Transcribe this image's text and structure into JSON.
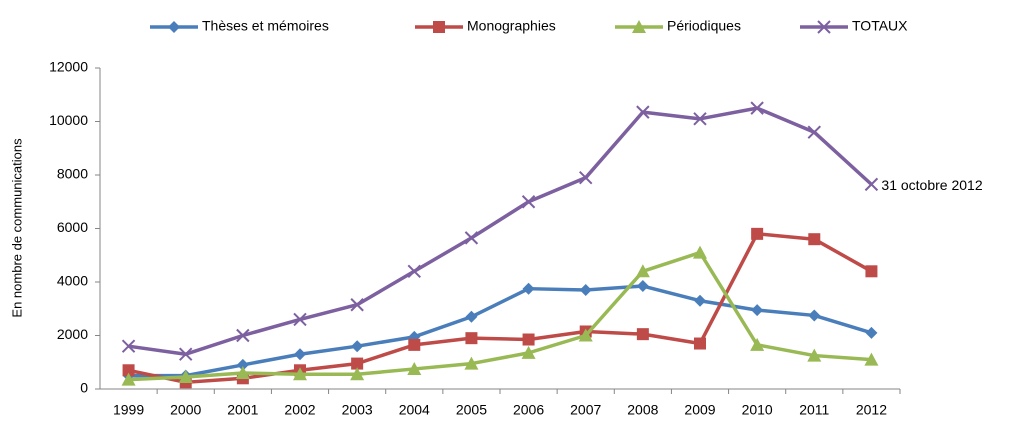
{
  "chart_data": {
    "type": "line",
    "ylabel": "En nombre de communications",
    "annotation": "31 octobre 2012",
    "categories": [
      "1999",
      "2000",
      "2001",
      "2002",
      "2003",
      "2004",
      "2005",
      "2006",
      "2007",
      "2008",
      "2009",
      "2010",
      "2011",
      "2012"
    ],
    "series": [
      {
        "name": "Thèses et mémoires",
        "color": "#4a7ebb",
        "marker": "diamond",
        "values": [
          500,
          500,
          900,
          1300,
          1600,
          1950,
          2700,
          3750,
          3700,
          3850,
          3300,
          2950,
          2750,
          2100
        ]
      },
      {
        "name": "Monographies",
        "color": "#be4b48",
        "marker": "square",
        "values": [
          700,
          250,
          400,
          700,
          950,
          1650,
          1900,
          1850,
          2150,
          2050,
          1700,
          5800,
          5600,
          4400
        ]
      },
      {
        "name": "Périodiques",
        "color": "#98b954",
        "marker": "triangle",
        "values": [
          350,
          450,
          600,
          550,
          550,
          750,
          950,
          1350,
          2000,
          4400,
          5100,
          1650,
          1250,
          1100
        ]
      },
      {
        "name": "TOTAUX",
        "color": "#7d60a0",
        "marker": "x",
        "values": [
          1600,
          1300,
          2000,
          2600,
          3150,
          4400,
          5650,
          7000,
          7900,
          10350,
          10100,
          10500,
          9600,
          7650
        ]
      }
    ],
    "ylim": [
      0,
      12000
    ],
    "yticks": [
      0,
      2000,
      4000,
      6000,
      8000,
      10000,
      12000
    ],
    "grid": false
  }
}
